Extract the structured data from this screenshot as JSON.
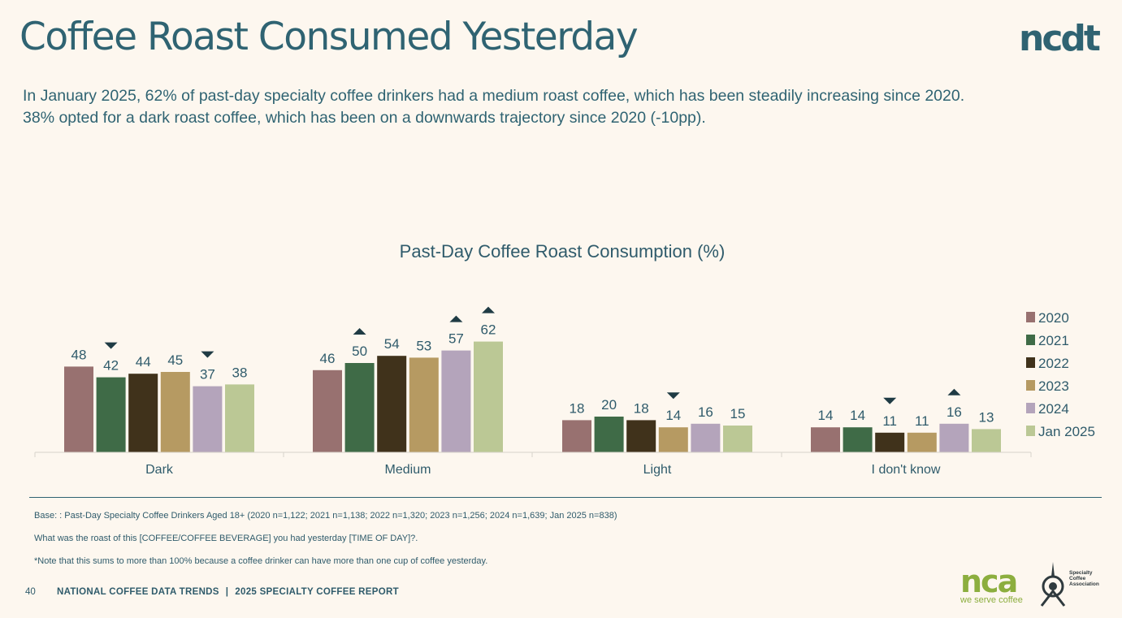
{
  "page": {
    "title": "Coffee Roast Consumed Yesterday",
    "logo_text": "ncdt",
    "subtitle_lines": [
      "In January 2025, 62% of past-day specialty coffee drinkers had a medium roast coffee, which has been steadily increasing since 2020.",
      "38% opted for a dark roast coffee, which has been on a downwards trajectory since 2020 (-10pp)."
    ]
  },
  "chart_data": {
    "type": "bar",
    "title": "Past-Day Coffee Roast Consumption (%)",
    "xlabel": "",
    "ylabel": "",
    "ylim": [
      0,
      70
    ],
    "grid": false,
    "legend_position": "right",
    "categories": [
      "Dark",
      "Medium",
      "Light",
      "I don't know"
    ],
    "series": [
      {
        "name": "2020",
        "color": "#987170",
        "values": [
          48,
          46,
          18,
          14
        ]
      },
      {
        "name": "2021",
        "color": "#3f6b47",
        "values": [
          42,
          50,
          20,
          14
        ]
      },
      {
        "name": "2022",
        "color": "#40321b",
        "values": [
          44,
          54,
          18,
          11
        ]
      },
      {
        "name": "2023",
        "color": "#b69a62",
        "values": [
          45,
          53,
          14,
          11
        ]
      },
      {
        "name": "2024",
        "color": "#b4a4bb",
        "values": [
          37,
          57,
          16,
          16
        ]
      },
      {
        "name": "Jan 2025",
        "color": "#bbc895",
        "values": [
          38,
          62,
          15,
          13
        ]
      }
    ],
    "significance_markers": [
      {
        "category": "Dark",
        "series": "2021",
        "direction": "down"
      },
      {
        "category": "Dark",
        "series": "2024",
        "direction": "down"
      },
      {
        "category": "Medium",
        "series": "2021",
        "direction": "up"
      },
      {
        "category": "Medium",
        "series": "2024",
        "direction": "up"
      },
      {
        "category": "Medium",
        "series": "Jan 2025",
        "direction": "up"
      },
      {
        "category": "Light",
        "series": "2023",
        "direction": "down"
      },
      {
        "category": "I don't know",
        "series": "2022",
        "direction": "down"
      },
      {
        "category": "I don't know",
        "series": "2024",
        "direction": "up"
      }
    ]
  },
  "footer": {
    "base_note": "Base: : Past-Day Specialty Coffee Drinkers Aged 18+ (2020 n=1,122; 2021 n=1,138; 2022 n=1,320; 2023 n=1,256; 2024 n=1,639; Jan 2025 n=838)",
    "question_note": "What was the roast of this [COFFEE/COFFEE BEVERAGE] you had yesterday [TIME OF DAY]?.",
    "sum_note": "*Note that this sums to more than 100% because a coffee drinker can have more than one cup of coffee yesterday.",
    "page_number": "40",
    "report_left": "NATIONAL COFFEE DATA TRENDS",
    "report_separator": "|",
    "report_right": "2025 SPECIALTY COFFEE REPORT",
    "nca_logo_text": "nca",
    "nca_tagline": "we serve coffee",
    "sca_logo_lines": [
      "Specialty",
      "Coffee",
      "Association"
    ]
  },
  "colors": {
    "background": "#fdf7ef",
    "text": "#2f5b6b",
    "nca_green": "#8cae3e",
    "marker": "#1f3b44"
  }
}
